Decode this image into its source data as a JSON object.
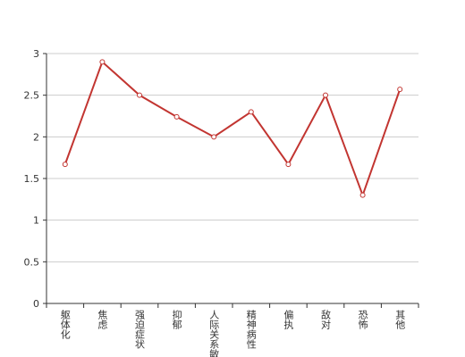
{
  "chart_data": {
    "type": "line",
    "categories": [
      "躯体化",
      "焦虑",
      "强迫症状",
      "抑郁",
      "人际关系敏感",
      "精神病性",
      "偏执",
      "敌对",
      "恐怖",
      "其他"
    ],
    "values": [
      1.67,
      2.9,
      2.5,
      2.24,
      2.0,
      2.3,
      1.67,
      2.5,
      1.3,
      2.57
    ],
    "color": "#c23531",
    "ylim": [
      0,
      3
    ],
    "yticks": [
      0,
      0.5,
      1,
      1.5,
      2,
      2.5,
      3
    ],
    "grid": true
  }
}
